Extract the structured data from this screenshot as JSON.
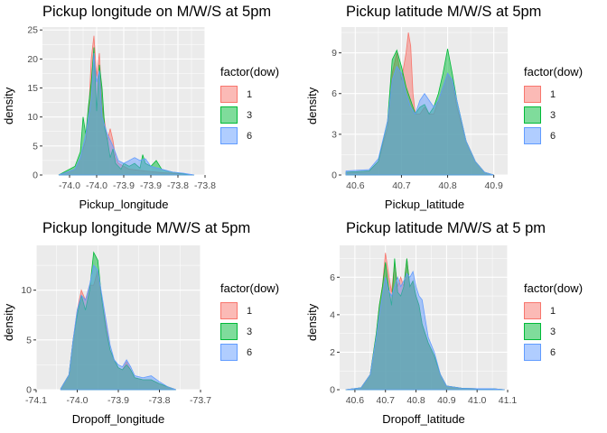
{
  "colors": {
    "panel_bg": "#EBEBEB",
    "grid": "#FFFFFF",
    "series": {
      "1": "#F8766D",
      "3": "#00BA38",
      "6": "#619CFF"
    }
  },
  "chart_data": [
    {
      "type": "area",
      "title": "Pickup longitude on M/W/S at 5pm",
      "xlabel": "Pickup_longitude",
      "ylabel": "density",
      "xlim": [
        -74.08,
        -73.78
      ],
      "ylim": [
        0,
        25.5
      ],
      "xticks": [
        {
          "v": -74.03,
          "label": "-74.0"
        },
        {
          "v": -73.98,
          "label": "-74.0"
        },
        {
          "v": -73.93,
          "label": "-73.9"
        },
        {
          "v": -73.88,
          "label": "-73.9"
        },
        {
          "v": -73.83,
          "label": "-73.8"
        },
        {
          "v": -73.78,
          "label": "-73.8"
        }
      ],
      "yticks": [
        0,
        5,
        10,
        15,
        20,
        25
      ],
      "legend": {
        "title": "factor(dow)",
        "position": "right",
        "labels": [
          "1",
          "3",
          "6"
        ]
      },
      "series": [
        {
          "name": "1",
          "x": [
            -74.05,
            -74.02,
            -74.01,
            -74.0,
            -73.995,
            -73.99,
            -73.985,
            -73.98,
            -73.975,
            -73.97,
            -73.965,
            -73.96,
            -73.955,
            -73.95,
            -73.945,
            -73.94,
            -73.93,
            -73.92,
            -73.9,
            -73.88,
            -73.86,
            -73.84,
            -73.82,
            -73.8
          ],
          "y": [
            0,
            1,
            3,
            6,
            10,
            20,
            24,
            17,
            21,
            12,
            9,
            6,
            8,
            6,
            3,
            2,
            1.5,
            1,
            0.8,
            0.6,
            0.4,
            0.3,
            0.2,
            0
          ]
        },
        {
          "name": "3",
          "x": [
            -74.05,
            -74.02,
            -74.01,
            -74.005,
            -74.0,
            -73.995,
            -73.99,
            -73.985,
            -73.98,
            -73.975,
            -73.97,
            -73.965,
            -73.96,
            -73.955,
            -73.95,
            -73.945,
            -73.94,
            -73.935,
            -73.93,
            -73.92,
            -73.91,
            -73.9,
            -73.895,
            -73.89,
            -73.88,
            -73.87,
            -73.86,
            -73.85,
            -73.84,
            -73.82,
            -73.8
          ],
          "y": [
            0,
            1.5,
            4,
            10,
            7,
            12,
            16,
            22,
            11,
            19,
            15,
            8,
            6,
            3,
            4.5,
            2,
            1.5,
            1,
            2,
            1.5,
            2,
            1.2,
            3.5,
            2,
            1.5,
            2.5,
            1,
            0.7,
            0.5,
            0.2,
            0
          ]
        },
        {
          "name": "6",
          "x": [
            -74.05,
            -74.02,
            -74.01,
            -74.0,
            -73.99,
            -73.985,
            -73.98,
            -73.975,
            -73.97,
            -73.96,
            -73.95,
            -73.94,
            -73.93,
            -73.92,
            -73.91,
            -73.9,
            -73.89,
            -73.88,
            -73.86,
            -73.84,
            -73.82,
            -73.8
          ],
          "y": [
            0,
            1,
            3,
            7,
            13,
            21,
            16,
            18,
            10,
            7,
            5,
            2.5,
            2,
            2.5,
            3,
            2.5,
            2.8,
            1.5,
            1,
            0.5,
            0.3,
            0
          ]
        }
      ]
    },
    {
      "type": "area",
      "title": "Pickup latitude M/W/S at 5pm",
      "xlabel": "Pickup_latitude",
      "ylabel": "density",
      "xlim": [
        40.57,
        40.93
      ],
      "ylim": [
        0,
        10.9
      ],
      "xticks": [
        {
          "v": 40.6,
          "label": "40.6"
        },
        {
          "v": 40.7,
          "label": "40.7"
        },
        {
          "v": 40.8,
          "label": "40.8"
        },
        {
          "v": 40.9,
          "label": "40.9"
        }
      ],
      "yticks": [
        0,
        3,
        6,
        9
      ],
      "legend": {
        "title": "factor(dow)",
        "position": "right",
        "labels": [
          "1",
          "3",
          "6"
        ]
      },
      "series": [
        {
          "name": "1",
          "x": [
            40.58,
            40.63,
            40.65,
            40.67,
            40.68,
            40.69,
            40.7,
            40.71,
            40.715,
            40.72,
            40.725,
            40.73,
            40.74,
            40.75,
            40.76,
            40.77,
            40.78,
            40.79,
            40.8,
            40.81,
            40.82,
            40.84,
            40.86,
            40.88,
            40.9
          ],
          "y": [
            0.2,
            0.3,
            1,
            3.5,
            7.5,
            9,
            7,
            9,
            10.5,
            9.5,
            6,
            4.5,
            4.5,
            5,
            4.5,
            4.5,
            5.5,
            6.5,
            7.5,
            7,
            5,
            2.5,
            1,
            0.2,
            0
          ]
        },
        {
          "name": "3",
          "x": [
            40.58,
            40.63,
            40.65,
            40.67,
            40.68,
            40.69,
            40.7,
            40.71,
            40.72,
            40.73,
            40.74,
            40.75,
            40.76,
            40.77,
            40.78,
            40.79,
            40.8,
            40.81,
            40.82,
            40.84,
            40.86,
            40.88,
            40.9
          ],
          "y": [
            0.2,
            0.3,
            1,
            4,
            8.5,
            9.2,
            8,
            6.5,
            5.5,
            4.5,
            5,
            5.2,
            4.5,
            5,
            6,
            7.5,
            9.3,
            7.5,
            5.5,
            2.5,
            1,
            0.2,
            0
          ]
        },
        {
          "name": "6",
          "x": [
            40.58,
            40.63,
            40.65,
            40.67,
            40.68,
            40.69,
            40.7,
            40.71,
            40.72,
            40.73,
            40.74,
            40.75,
            40.76,
            40.77,
            40.78,
            40.79,
            40.8,
            40.81,
            40.82,
            40.84,
            40.86,
            40.88,
            40.9
          ],
          "y": [
            0.3,
            0.4,
            1.2,
            4,
            7,
            8,
            7.5,
            6,
            5,
            4.5,
            5.5,
            6,
            5.5,
            5,
            5.5,
            6.5,
            7.5,
            7,
            5.5,
            2.5,
            1,
            0.2,
            0
          ]
        }
      ]
    },
    {
      "type": "area",
      "title": "Pickup longitude M/W/S at 5pm",
      "xlabel": "Dropoff_longitude",
      "ylabel": "density",
      "xlim": [
        -74.1,
        -73.7
      ],
      "ylim": [
        0,
        14.5
      ],
      "xticks": [
        {
          "v": -74.1,
          "label": "-74.1"
        },
        {
          "v": -74.0,
          "label": "-74.0"
        },
        {
          "v": -73.9,
          "label": "-73.9"
        },
        {
          "v": -73.8,
          "label": "-73.8"
        },
        {
          "v": -73.7,
          "label": "-73.7"
        }
      ],
      "yticks": [
        0,
        5,
        10
      ],
      "legend": {
        "title": "factor(dow)",
        "position": "right",
        "labels": [
          "1",
          "3",
          "6"
        ]
      },
      "series": [
        {
          "name": "1",
          "x": [
            -74.04,
            -74.02,
            -74.01,
            -74.0,
            -73.99,
            -73.98,
            -73.97,
            -73.96,
            -73.95,
            -73.94,
            -73.93,
            -73.92,
            -73.91,
            -73.9,
            -73.89,
            -73.88,
            -73.87,
            -73.86,
            -73.84,
            -73.82,
            -73.8,
            -73.78,
            -73.76
          ],
          "y": [
            0.1,
            1.5,
            5,
            8,
            10,
            9,
            10.5,
            10.5,
            12,
            9,
            6.5,
            4,
            3,
            2.2,
            2,
            2.8,
            2,
            1.2,
            1,
            1,
            0.6,
            0.3,
            0
          ]
        },
        {
          "name": "3",
          "x": [
            -74.04,
            -74.02,
            -74.01,
            -74.0,
            -73.99,
            -73.98,
            -73.97,
            -73.96,
            -73.95,
            -73.94,
            -73.93,
            -73.92,
            -73.91,
            -73.9,
            -73.89,
            -73.88,
            -73.87,
            -73.86,
            -73.84,
            -73.82,
            -73.8,
            -73.78,
            -73.76
          ],
          "y": [
            0.1,
            1.5,
            5,
            7.5,
            9.5,
            8,
            10,
            13.8,
            13,
            9,
            6,
            4,
            3,
            2.2,
            2,
            2.5,
            2,
            1.2,
            1,
            1,
            0.6,
            0.3,
            0
          ]
        },
        {
          "name": "6",
          "x": [
            -74.04,
            -74.02,
            -74.01,
            -74.0,
            -73.99,
            -73.98,
            -73.97,
            -73.96,
            -73.95,
            -73.94,
            -73.93,
            -73.92,
            -73.91,
            -73.9,
            -73.89,
            -73.88,
            -73.87,
            -73.86,
            -73.84,
            -73.82,
            -73.8,
            -73.78,
            -73.76
          ],
          "y": [
            0.1,
            1.5,
            5,
            8,
            9.5,
            9,
            10.5,
            12.5,
            12,
            9.5,
            7,
            4.5,
            3,
            2.5,
            2.3,
            3,
            2.3,
            1.4,
            1.2,
            1.4,
            0.8,
            0.3,
            0
          ]
        }
      ]
    },
    {
      "type": "area",
      "title": "Pickup latitude M/W/S at 5 pm",
      "xlabel": "Dropoff_latitude",
      "ylabel": "density",
      "xlim": [
        40.55,
        41.1
      ],
      "ylim": [
        0,
        7.7
      ],
      "xticks": [
        {
          "v": 40.6,
          "label": "40.6"
        },
        {
          "v": 40.7,
          "label": "40.7"
        },
        {
          "v": 40.8,
          "label": "40.8"
        },
        {
          "v": 40.9,
          "label": "40.9"
        },
        {
          "v": 41.0,
          "label": "41.0"
        },
        {
          "v": 41.1,
          "label": "41.1"
        }
      ],
      "yticks": [
        0,
        2,
        4,
        6
      ],
      "legend": {
        "title": "factor(dow)",
        "position": "right",
        "labels": [
          "1",
          "3",
          "6"
        ]
      },
      "series": [
        {
          "name": "1",
          "x": [
            40.57,
            40.62,
            40.65,
            40.67,
            40.68,
            40.69,
            40.7,
            40.71,
            40.72,
            40.73,
            40.74,
            40.75,
            40.76,
            40.77,
            40.78,
            40.79,
            40.8,
            40.81,
            40.82,
            40.84,
            40.86,
            40.88,
            40.9,
            40.95,
            41.0,
            41.05,
            41.09
          ],
          "y": [
            0,
            0.1,
            0.8,
            3,
            4.5,
            5.5,
            7.3,
            6.2,
            5.2,
            6.8,
            5.5,
            6,
            5.5,
            7,
            5.5,
            5.8,
            5,
            4.5,
            3.5,
            2.5,
            1.8,
            0.8,
            0.2,
            0.08,
            0.05,
            0.05,
            0
          ]
        },
        {
          "name": "3",
          "x": [
            40.57,
            40.62,
            40.65,
            40.67,
            40.68,
            40.69,
            40.7,
            40.71,
            40.72,
            40.73,
            40.74,
            40.75,
            40.76,
            40.77,
            40.78,
            40.79,
            40.8,
            40.81,
            40.82,
            40.84,
            40.86,
            40.88,
            40.9,
            40.95,
            41.0,
            41.05,
            41.09
          ],
          "y": [
            0,
            0.1,
            0.8,
            3,
            4.5,
            5.5,
            6.8,
            5.5,
            4.5,
            7,
            5.2,
            5,
            5.5,
            7,
            5.5,
            5.8,
            5,
            4.5,
            3.5,
            2.5,
            1.8,
            0.8,
            0.2,
            0.08,
            0.05,
            0.05,
            0
          ]
        },
        {
          "name": "6",
          "x": [
            40.57,
            40.62,
            40.65,
            40.67,
            40.68,
            40.69,
            40.7,
            40.71,
            40.72,
            40.73,
            40.74,
            40.75,
            40.76,
            40.77,
            40.78,
            40.79,
            40.8,
            40.81,
            40.82,
            40.84,
            40.86,
            40.88,
            40.9,
            40.95,
            41.0,
            41.05,
            41.09
          ],
          "y": [
            0,
            0.1,
            0.8,
            2.8,
            4,
            5,
            6,
            5.3,
            5,
            5.5,
            6,
            5.5,
            5.8,
            6.2,
            6,
            6.3,
            5.5,
            5,
            4.8,
            2.8,
            2,
            0.8,
            0.2,
            0.08,
            0.05,
            0.05,
            0
          ]
        }
      ]
    }
  ]
}
